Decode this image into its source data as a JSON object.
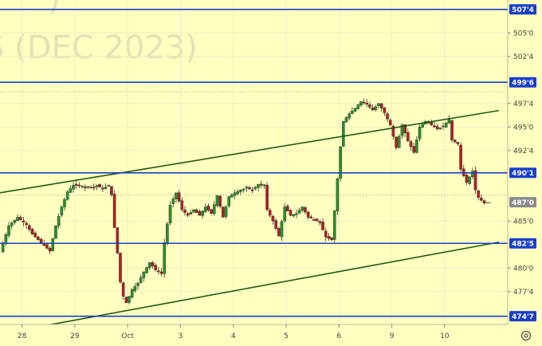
{
  "watermark": "(DEC 2023)",
  "chart_data": {
    "type": "candlestick",
    "y_axis": {
      "ticks": [
        "505'0",
        "502'4",
        "497'4",
        "495'0",
        "492'4",
        "485'0",
        "480'0",
        "477'4"
      ],
      "tick_values": [
        505.0,
        502.5,
        497.5,
        495.0,
        492.5,
        485.0,
        480.0,
        477.5
      ],
      "ylim": [
        474.0,
        508.5
      ]
    },
    "x_axis": {
      "labels": [
        "28",
        "29",
        "Oct",
        "3",
        "4",
        "5",
        "6",
        "9",
        "10"
      ],
      "positions": [
        4.5,
        22.5,
        40.5,
        58.5,
        76.5,
        94.5,
        112.5,
        130.5,
        148.5
      ],
      "xlim": [
        -3,
        170
      ]
    },
    "horizontal_levels": [
      {
        "label": "507'4",
        "value": 507.5
      },
      {
        "label": "499'6",
        "value": 499.75
      },
      {
        "label": "490'1",
        "value": 490.125
      },
      {
        "label": "482'5",
        "value": 482.625
      },
      {
        "label": "474'7",
        "value": 474.875
      }
    ],
    "current_price": {
      "label": "487'0",
      "value": 487.0
    },
    "reference_levels": [
      498.75,
      487.75
    ],
    "trend_lines": [
      {
        "from": [
          -3,
          488.0
        ],
        "to": [
          167,
          496.75
        ]
      },
      {
        "from": [
          -3,
          473.0
        ],
        "to": [
          167,
          482.75
        ]
      }
    ],
    "colors": {
      "background": "#ffffc0",
      "level_line": "#1a3fcc",
      "level_tag": "#1a3fcc",
      "trend_line": "#1e5a14",
      "up_candle": "#2a8f2a",
      "down_candle": "#b02020",
      "current_tag": "#8a8a8a"
    },
    "ohlc_path": [
      [
        -3,
        481.7
      ],
      [
        0,
        484.5
      ],
      [
        3,
        485.4
      ],
      [
        6,
        484.6
      ],
      [
        8,
        483.6
      ],
      [
        11,
        482.7
      ],
      [
        14,
        481.8
      ],
      [
        16,
        484.5
      ],
      [
        18,
        486.5
      ],
      [
        20,
        488.1
      ],
      [
        22,
        488.8
      ],
      [
        25,
        488.7
      ],
      [
        28,
        488.5
      ],
      [
        30,
        488.8
      ],
      [
        32,
        488.4
      ],
      [
        34,
        488.8
      ],
      [
        35,
        487.8
      ],
      [
        36,
        484.3
      ],
      [
        37,
        481.6
      ],
      [
        38,
        478.5
      ],
      [
        39,
        477.0
      ],
      [
        40,
        476.3
      ],
      [
        42,
        477.7
      ],
      [
        44,
        478.4
      ],
      [
        46,
        479.6
      ],
      [
        48,
        480.6
      ],
      [
        50,
        479.8
      ],
      [
        52,
        479.4
      ],
      [
        53,
        482.7
      ],
      [
        55,
        486.7
      ],
      [
        57,
        488.0
      ],
      [
        59,
        486.2
      ],
      [
        61,
        485.6
      ],
      [
        63,
        486.2
      ],
      [
        65,
        485.6
      ],
      [
        67,
        486.5
      ],
      [
        69,
        485.8
      ],
      [
        71,
        487.7
      ],
      [
        73,
        485.4
      ],
      [
        75,
        487.6
      ],
      [
        77,
        488.0
      ],
      [
        79,
        488.3
      ],
      [
        81,
        488.5
      ],
      [
        83,
        488.3
      ],
      [
        85,
        488.9
      ],
      [
        87,
        488.7
      ],
      [
        88,
        486.2
      ],
      [
        90,
        485.0
      ],
      [
        92,
        483.4
      ],
      [
        94,
        486.5
      ],
      [
        96,
        485.6
      ],
      [
        98,
        485.8
      ],
      [
        100,
        486.5
      ],
      [
        102,
        485.4
      ],
      [
        104,
        485.2
      ],
      [
        106,
        484.8
      ],
      [
        108,
        483.3
      ],
      [
        110,
        483.0
      ],
      [
        111,
        486.1
      ],
      [
        113,
        492.9
      ],
      [
        114,
        495.6
      ],
      [
        116,
        496.4
      ],
      [
        118,
        497.0
      ],
      [
        120,
        497.7
      ],
      [
        122,
        497.4
      ],
      [
        124,
        496.8
      ],
      [
        126,
        497.5
      ],
      [
        128,
        496.5
      ],
      [
        130,
        495.2
      ],
      [
        132,
        492.8
      ],
      [
        134,
        495.2
      ],
      [
        136,
        493.5
      ],
      [
        138,
        492.3
      ],
      [
        140,
        495.0
      ],
      [
        142,
        495.6
      ],
      [
        144,
        495.2
      ],
      [
        146,
        494.8
      ],
      [
        148,
        495.1
      ],
      [
        150,
        495.8
      ],
      [
        151,
        493.6
      ],
      [
        153,
        493.2
      ],
      [
        154,
        490.5
      ],
      [
        156,
        489.1
      ],
      [
        158,
        490.3
      ],
      [
        159,
        488.3
      ],
      [
        160,
        487.5
      ],
      [
        162,
        486.9
      ]
    ]
  }
}
